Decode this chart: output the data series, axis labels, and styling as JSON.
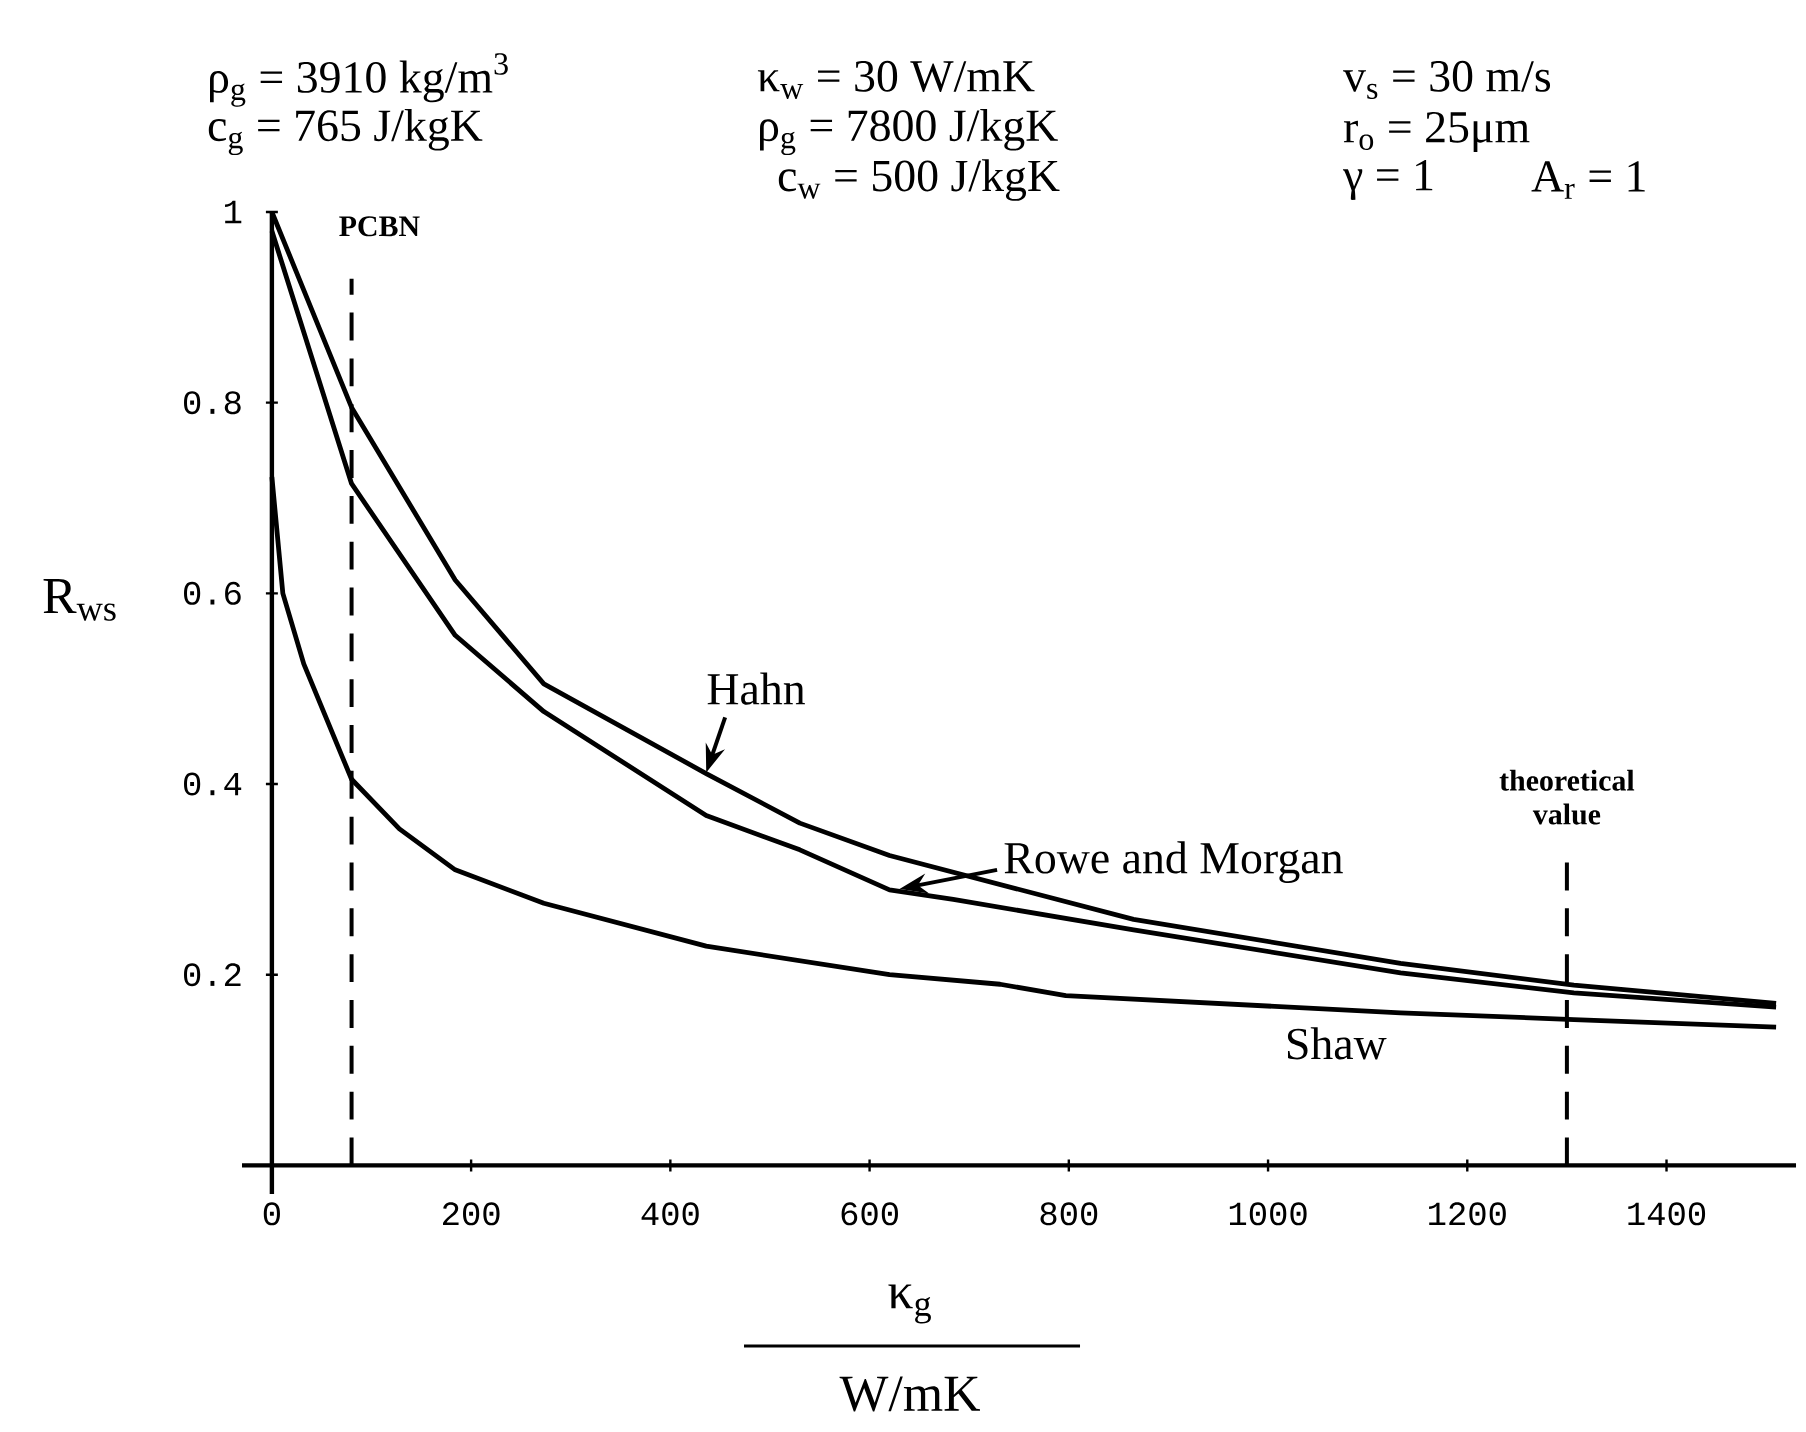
{
  "chart_data": {
    "type": "line",
    "xlabel": "κ$_{g}$",
    "ylabel": "R$_{ws}$",
    "xlim": [
      -30,
      1530
    ],
    "ylim": [
      -0.03,
      1
    ],
    "xticks": [
      0,
      200,
      400,
      600,
      800,
      1000,
      1200,
      1400
    ],
    "yticks": [
      {
        "value": 0.2,
        "label": "0.2"
      },
      {
        "value": 0.4,
        "label": "0.4"
      },
      {
        "value": 0.6,
        "label": "0.6"
      },
      {
        "value": 0.8,
        "label": "0.8"
      },
      1
    ],
    "grid": false,
    "marker": "none",
    "line_style": "solid",
    "series": [
      {
        "name": "Hahn",
        "color": "#000000",
        "x": [
          0,
          80,
          184,
          273,
          436,
          530,
          620,
          865,
          1133,
          1307,
          1510
        ],
        "values": [
          1.0,
          0.795,
          0.614,
          0.505,
          0.411,
          0.359,
          0.325,
          0.258,
          0.212,
          0.189,
          0.17
        ]
      },
      {
        "name": "Rowe and Morgan",
        "color": "#000000",
        "x": [
          0,
          80,
          184,
          273,
          436,
          530,
          620,
          684,
          865,
          1133,
          1307,
          1510
        ],
        "values": [
          0.98,
          0.715,
          0.556,
          0.476,
          0.367,
          0.331,
          0.289,
          0.279,
          0.247,
          0.202,
          0.181,
          0.166
        ]
      },
      {
        "name": "Shaw",
        "color": "#000000",
        "x": [
          0,
          11,
          32,
          80,
          128,
          184,
          273,
          436,
          620,
          731,
          797,
          1133,
          1307,
          1510
        ],
        "values": [
          0.722,
          0.6,
          0.526,
          0.405,
          0.353,
          0.31,
          0.275,
          0.23,
          0.2,
          0.19,
          0.178,
          0.16,
          0.153,
          0.145
        ]
      }
    ],
    "ref_lines": [
      {
        "axis": "x",
        "value": 80,
        "label": "PCBN",
        "line_style": "dashed",
        "color": "#000000"
      },
      {
        "axis": "x",
        "value": 1300,
        "label": "theoretical value",
        "line_style": "dashed",
        "color": "#000000"
      }
    ],
    "annotations": [
      "ρ$_{g}$ = 3910 kg/m$^{3}$",
      "c$_{g}$ = 765 J/kgK",
      "κ$_{w}$ = 30 W/mK",
      "ρ$_{g}$ = 7800 J/kgK",
      "c$_{w}$ = 500 J/kgK",
      "v$_{s}$ = 30 m/s",
      "r$_{o}$ = 25μm",
      "γ = 1",
      "A$_{r}$ = 1",
      "W/mK"
    ]
  }
}
